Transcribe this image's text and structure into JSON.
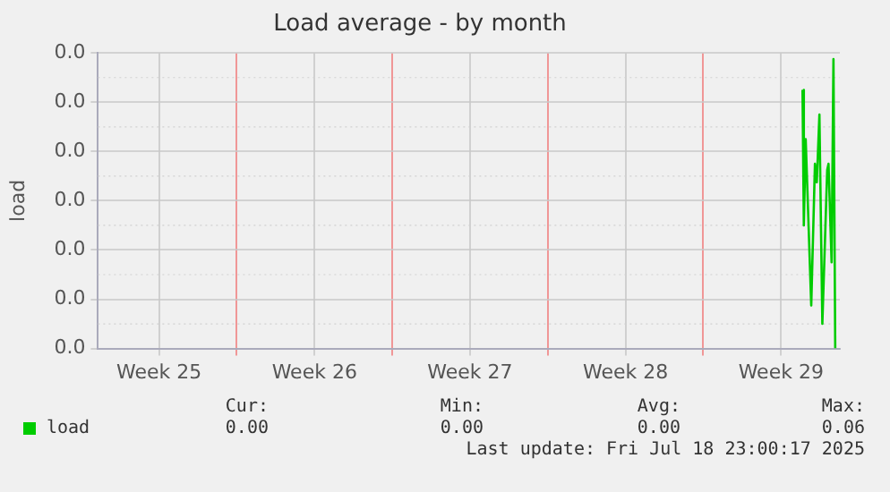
{
  "chart_data": {
    "type": "line",
    "title": "Load average - by month",
    "ylabel": "load",
    "x": [
      "2025-07-17T11:15",
      "2025-07-17T12:40",
      "2025-07-17T14:40",
      "2025-07-17T20:40",
      "2025-07-18T00:40",
      "2025-07-18T02:40",
      "2025-07-18T05:30",
      "2025-07-18T08:40",
      "2025-07-18T13:55",
      "2025-07-18T15:20",
      "2025-07-18T18:40",
      "2025-07-18T20:40",
      "2025-07-18T22:35"
    ],
    "series": [
      {
        "name": "load",
        "color": "#00cc00",
        "values": [
          0.042,
          0.02,
          0.034,
          0.007,
          0.03,
          0.027,
          0.038,
          0.004,
          0.029,
          0.03,
          0.014,
          0.047,
          0.0
        ]
      }
    ],
    "xlim": [
      "2025-06-15T18:00",
      "2025-07-19T03:35"
    ],
    "xticks": [
      {
        "value": "2025-06-18T12:00",
        "label": "Week 25"
      },
      {
        "value": "2025-06-22",
        "label": null
      },
      {
        "value": "2025-06-25T12:00",
        "label": "Week 26"
      },
      {
        "value": "2025-06-29",
        "label": null
      },
      {
        "value": "2025-07-02T12:00",
        "label": "Week 27"
      },
      {
        "value": "2025-07-06",
        "label": null
      },
      {
        "value": "2025-07-09T12:00",
        "label": "Week 28"
      },
      {
        "value": "2025-07-13",
        "label": null
      },
      {
        "value": "2025-07-16T12:00",
        "label": "Week 29"
      }
    ],
    "ylim": [
      0,
      0.048
    ],
    "yticks": [
      {
        "value": 0,
        "label": "0.0"
      },
      {
        "value": 0.008,
        "label": "0.0"
      },
      {
        "value": 0.016,
        "label": "0.0"
      },
      {
        "value": 0.024,
        "label": "0.0"
      },
      {
        "value": 0.032,
        "label": "0.0"
      },
      {
        "value": 0.04,
        "label": "0.0"
      },
      {
        "value": 0.048,
        "label": "0.0"
      }
    ],
    "grid": true,
    "legend": "bottom left",
    "marker": "none",
    "line_style": "solid",
    "annotations": [
      "Cur:",
      "0.00",
      "Min:",
      "0.00",
      "Avg:",
      "0.00",
      "Max:",
      "0.06",
      "Last update: Fri Jul 18 23:00:17 2025"
    ]
  }
}
